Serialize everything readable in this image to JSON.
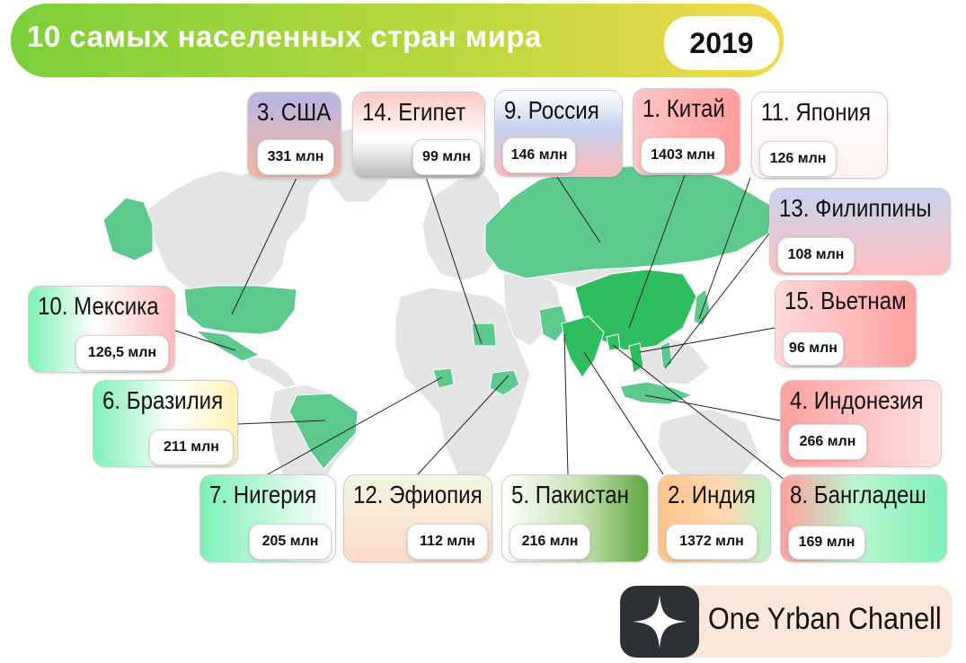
{
  "header": {
    "title": "10 самых населенных стран мира",
    "year": "2019"
  },
  "colors": {
    "highlight": "#5ec98d",
    "highlight_dark": "#2ebd5e",
    "land": "#e4e4e4"
  },
  "countries": [
    {
      "key": "usa",
      "name": "3. США",
      "population": "331 млн"
    },
    {
      "key": "egypt",
      "name": "14. Египет",
      "population": "99 млн"
    },
    {
      "key": "russia",
      "name": "9. Россия",
      "population": "146 млн"
    },
    {
      "key": "china",
      "name": "1. Китай",
      "population": "1403 млн"
    },
    {
      "key": "japan",
      "name": "11. Япония",
      "population": "126 млн"
    },
    {
      "key": "philippines",
      "name": "13. Филиппины",
      "population": "108 млн"
    },
    {
      "key": "mexico",
      "name": "10. Мексика",
      "population": "126,5 млн"
    },
    {
      "key": "vietnam",
      "name": "15. Вьетнам",
      "population": "96 млн"
    },
    {
      "key": "brazil",
      "name": "6. Бразилия",
      "population": "211 млн"
    },
    {
      "key": "indonesia",
      "name": "4. Индонезия",
      "population": "266 млн"
    },
    {
      "key": "nigeria",
      "name": "7. Нигерия",
      "population": "205 млн"
    },
    {
      "key": "ethiopia",
      "name": "12. Эфиопия",
      "population": "112 млн"
    },
    {
      "key": "pakistan",
      "name": "5. Пакистан",
      "population": "216 млн"
    },
    {
      "key": "india",
      "name": "2. Индия",
      "population": "1372 млн"
    },
    {
      "key": "bangladesh",
      "name": "8. Бангладеш",
      "population": "169 млн"
    }
  ],
  "channel": {
    "name": "One Yrban Chanell",
    "logo_icon": "zen-star-icon"
  }
}
